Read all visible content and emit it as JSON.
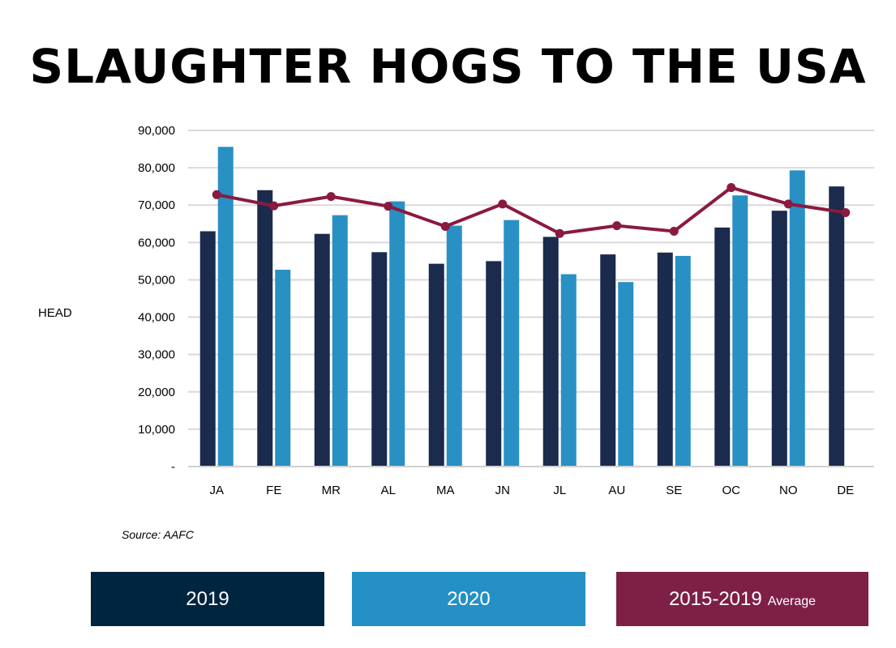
{
  "chart_data": {
    "type": "bar",
    "title": "SLAUGHTER HOGS TO THE USA",
    "ylabel": "HEAD",
    "xlabel": "",
    "ylim": [
      0,
      90000
    ],
    "y_ticks": [
      0,
      10000,
      20000,
      30000,
      40000,
      50000,
      60000,
      70000,
      80000,
      90000
    ],
    "y_tick_labels": [
      "-",
      "10,000",
      "20,000",
      "30,000",
      "40,000",
      "50,000",
      "60,000",
      "70,000",
      "80,000",
      "90,000"
    ],
    "grid": true,
    "categories": [
      "JA",
      "FE",
      "MR",
      "AL",
      "MA",
      "JN",
      "JL",
      "AU",
      "SE",
      "OC",
      "NO",
      "DE"
    ],
    "series": [
      {
        "name": "2019",
        "type": "bar",
        "color": "#1b2b4d",
        "values": [
          63000,
          74000,
          62300,
          57400,
          54300,
          55000,
          61500,
          56800,
          57300,
          64000,
          68500,
          75000
        ]
      },
      {
        "name": "2020",
        "type": "bar",
        "color": "#2990c3",
        "values": [
          85600,
          52700,
          67300,
          71000,
          64500,
          66000,
          51500,
          49400,
          56400,
          72600,
          79300,
          null
        ]
      },
      {
        "name": "2015-2019 Average",
        "type": "line",
        "color": "#8a1a40",
        "values": [
          72800,
          69800,
          72300,
          69700,
          64300,
          70300,
          62400,
          64500,
          63000,
          74700,
          70300,
          68000
        ]
      }
    ],
    "legend": [
      {
        "label": "2019",
        "suffix": "",
        "color": "#002540"
      },
      {
        "label": "2020",
        "suffix": "",
        "color": "#2490c5"
      },
      {
        "label": "2015-2019",
        "suffix": "Average",
        "color": "#7e2045"
      }
    ],
    "source": "Source: AAFC"
  }
}
